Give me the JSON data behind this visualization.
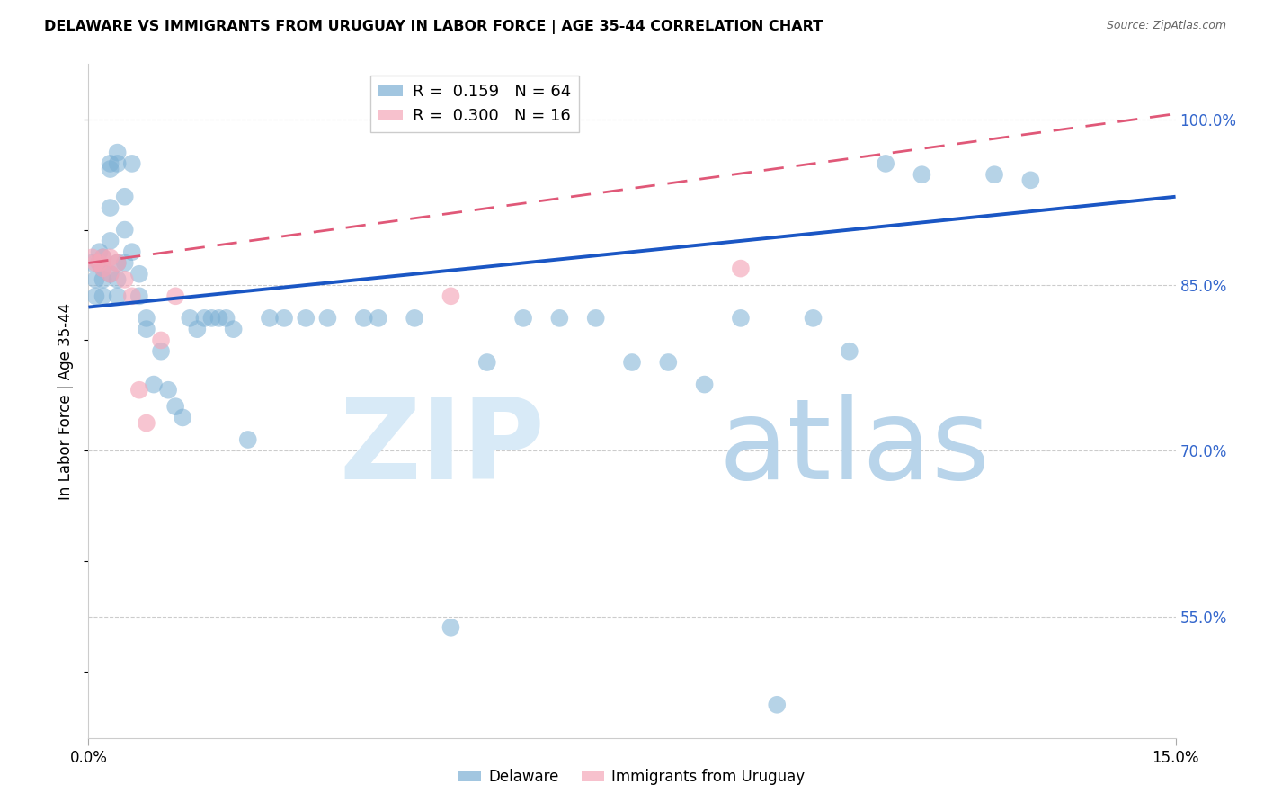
{
  "title": "DELAWARE VS IMMIGRANTS FROM URUGUAY IN LABOR FORCE | AGE 35-44 CORRELATION CHART",
  "source": "Source: ZipAtlas.com",
  "ylabel": "In Labor Force | Age 35-44",
  "yticks": [
    "55.0%",
    "70.0%",
    "85.0%",
    "100.0%"
  ],
  "ytick_vals": [
    0.55,
    0.7,
    0.85,
    1.0
  ],
  "xlim": [
    0.0,
    0.15
  ],
  "ylim": [
    0.44,
    1.05
  ],
  "delaware_color": "#7bafd4",
  "uruguay_color": "#f4a7b9",
  "trend_delaware_color": "#1a56c4",
  "trend_uruguay_color": "#e05878",
  "legend1_label": "R =  0.159   N = 64",
  "legend2_label": "R =  0.300   N = 16",
  "bottom_legend1": "Delaware",
  "bottom_legend2": "Immigrants from Uruguay",
  "delaware_x": [
    0.0005,
    0.001,
    0.001,
    0.0015,
    0.0015,
    0.002,
    0.002,
    0.002,
    0.002,
    0.003,
    0.003,
    0.003,
    0.003,
    0.003,
    0.004,
    0.004,
    0.004,
    0.004,
    0.004,
    0.005,
    0.005,
    0.005,
    0.006,
    0.006,
    0.007,
    0.007,
    0.008,
    0.008,
    0.009,
    0.01,
    0.011,
    0.012,
    0.013,
    0.014,
    0.015,
    0.016,
    0.017,
    0.018,
    0.019,
    0.02,
    0.022,
    0.025,
    0.027,
    0.03,
    0.033,
    0.038,
    0.04,
    0.045,
    0.05,
    0.055,
    0.06,
    0.065,
    0.07,
    0.075,
    0.08,
    0.085,
    0.09,
    0.095,
    0.1,
    0.105,
    0.11,
    0.115,
    0.125,
    0.13
  ],
  "delaware_y": [
    0.87,
    0.855,
    0.84,
    0.88,
    0.87,
    0.875,
    0.865,
    0.855,
    0.84,
    0.96,
    0.955,
    0.92,
    0.89,
    0.86,
    0.97,
    0.96,
    0.87,
    0.855,
    0.84,
    0.93,
    0.9,
    0.87,
    0.96,
    0.88,
    0.86,
    0.84,
    0.82,
    0.81,
    0.76,
    0.79,
    0.755,
    0.74,
    0.73,
    0.82,
    0.81,
    0.82,
    0.82,
    0.82,
    0.82,
    0.81,
    0.71,
    0.82,
    0.82,
    0.82,
    0.82,
    0.82,
    0.82,
    0.82,
    0.54,
    0.78,
    0.82,
    0.82,
    0.82,
    0.78,
    0.78,
    0.76,
    0.82,
    0.47,
    0.82,
    0.79,
    0.96,
    0.95,
    0.95,
    0.945
  ],
  "uruguay_x": [
    0.0005,
    0.001,
    0.0015,
    0.002,
    0.002,
    0.003,
    0.003,
    0.004,
    0.005,
    0.006,
    0.007,
    0.008,
    0.01,
    0.012,
    0.05,
    0.09
  ],
  "uruguay_y": [
    0.875,
    0.87,
    0.87,
    0.875,
    0.865,
    0.875,
    0.86,
    0.87,
    0.855,
    0.84,
    0.755,
    0.725,
    0.8,
    0.84,
    0.84,
    0.865
  ],
  "trend_de_x0": 0.0,
  "trend_de_y0": 0.83,
  "trend_de_x1": 0.15,
  "trend_de_y1": 0.93,
  "trend_ur_x0": 0.0,
  "trend_ur_y0": 0.87,
  "trend_ur_x1": 0.15,
  "trend_ur_y1": 1.005
}
